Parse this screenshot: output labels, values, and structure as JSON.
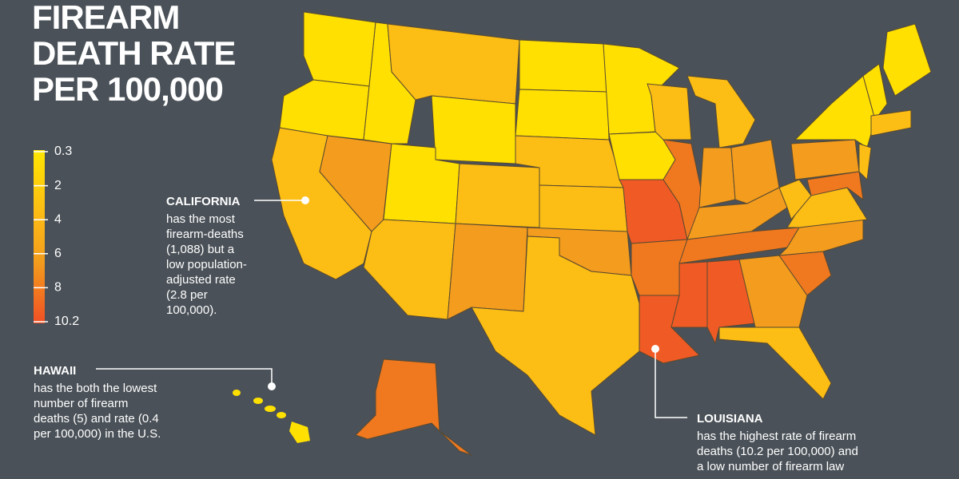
{
  "title": {
    "lines": [
      "FIREARM",
      "DEATH RATE",
      "PER 100,000"
    ]
  },
  "legend": {
    "ticks": [
      0.3,
      2,
      4,
      6,
      8,
      10.2
    ]
  },
  "annotations": [
    {
      "heading": "CALIFORNIA",
      "lines": [
        "has the most",
        "firearm-deaths",
        "(1,088) but a",
        "low population-",
        "adjusted rate",
        "(2.8 per",
        "100,000)."
      ]
    },
    {
      "heading": "HAWAII",
      "lines": [
        "has the both the lowest",
        "number of firearm",
        "deaths (5) and rate (0.4",
        "per 100,000) in the U.S."
      ]
    },
    {
      "heading": "LOUISIANA",
      "lines": [
        "has the highest rate of firearm",
        "deaths (10.2 per 100,000) and",
        "a low number of firearm law"
      ]
    }
  ]
}
